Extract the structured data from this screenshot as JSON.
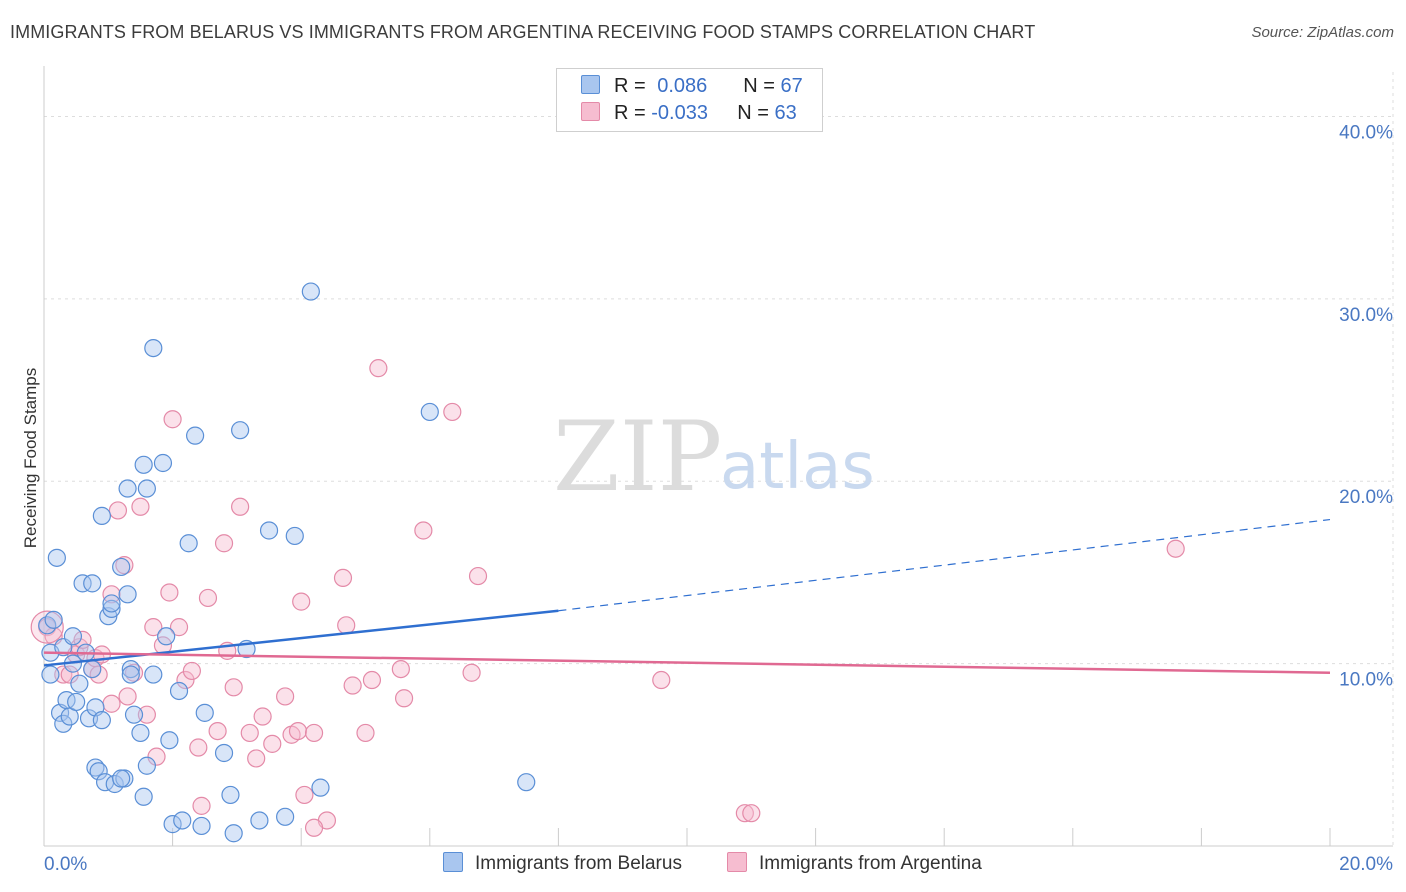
{
  "title": "IMMIGRANTS FROM BELARUS VS IMMIGRANTS FROM ARGENTINA RECEIVING FOOD STAMPS CORRELATION CHART",
  "source": "Source: ZipAtlas.com",
  "watermark": {
    "zip": "ZIP",
    "atlas": "atlas"
  },
  "colors": {
    "belarus_fill": "#a9c6ef",
    "belarus_stroke": "#5a8fd6",
    "belarus_line": "#2f6fd0",
    "argentina_fill": "#f6bdd0",
    "argentina_stroke": "#e48aa8",
    "argentina_line": "#e06992",
    "grid": "#dddddd",
    "tick_text": "#4a78c2"
  },
  "legend": {
    "belarus": {
      "r_label": "R = ",
      "r_value": "0.086",
      "n_label": "N = ",
      "n_value": "67"
    },
    "argentina": {
      "r_label": "R = ",
      "r_value": "-0.033",
      "n_label": "N = ",
      "n_value": "63"
    }
  },
  "bottom_legend": {
    "belarus": "Immigrants from Belarus",
    "argentina": "Immigrants from Argentina"
  },
  "chart_data": {
    "type": "scatter",
    "title": "IMMIGRANTS FROM BELARUS VS IMMIGRANTS FROM ARGENTINA RECEIVING FOOD STAMPS CORRELATION CHART",
    "xlabel": "",
    "ylabel": "Receiving Food Stamps",
    "xlim": [
      0,
      20
    ],
    "ylim": [
      0,
      42
    ],
    "x_tick_labels": [
      {
        "value": 0,
        "label": "0.0%"
      },
      {
        "value": 20,
        "label": "20.0%"
      }
    ],
    "y_tick_labels": [
      {
        "value": 10,
        "label": "10.0%"
      },
      {
        "value": 20,
        "label": "20.0%"
      },
      {
        "value": 30,
        "label": "30.0%"
      },
      {
        "value": 40,
        "label": "40.0%"
      }
    ],
    "grid": true,
    "legend_position": "top-center",
    "series": [
      {
        "name": "Immigrants from Belarus",
        "trend": {
          "x_start": 0,
          "y_start": 9.9,
          "x_solid_end": 8,
          "y_solid_end": 12.9,
          "x_end": 20,
          "y_end": 17.9
        },
        "points": [
          [
            0.05,
            12.1
          ],
          [
            0.1,
            10.6
          ],
          [
            0.1,
            9.4
          ],
          [
            0.2,
            15.8
          ],
          [
            0.25,
            7.3
          ],
          [
            0.3,
            10.9
          ],
          [
            0.3,
            6.7
          ],
          [
            0.35,
            8.0
          ],
          [
            0.4,
            7.1
          ],
          [
            0.45,
            11.5
          ],
          [
            0.45,
            10.0
          ],
          [
            0.5,
            7.9
          ],
          [
            0.55,
            8.9
          ],
          [
            0.6,
            14.4
          ],
          [
            0.65,
            10.6
          ],
          [
            0.7,
            7.0
          ],
          [
            0.75,
            9.7
          ],
          [
            0.75,
            14.4
          ],
          [
            0.8,
            7.6
          ],
          [
            0.8,
            4.3
          ],
          [
            0.85,
            4.1
          ],
          [
            0.9,
            18.1
          ],
          [
            0.9,
            6.9
          ],
          [
            0.95,
            3.5
          ],
          [
            1.0,
            12.6
          ],
          [
            1.05,
            13.0
          ],
          [
            1.05,
            13.3
          ],
          [
            1.1,
            3.4
          ],
          [
            1.2,
            15.3
          ],
          [
            1.25,
            3.7
          ],
          [
            1.3,
            13.8
          ],
          [
            1.3,
            19.6
          ],
          [
            1.35,
            9.7
          ],
          [
            1.35,
            9.4
          ],
          [
            1.4,
            7.2
          ],
          [
            1.5,
            6.2
          ],
          [
            1.55,
            2.7
          ],
          [
            1.55,
            20.9
          ],
          [
            1.6,
            4.4
          ],
          [
            1.6,
            19.6
          ],
          [
            1.7,
            9.4
          ],
          [
            1.85,
            21.0
          ],
          [
            1.9,
            11.5
          ],
          [
            1.95,
            5.8
          ],
          [
            2.0,
            1.2
          ],
          [
            2.1,
            8.5
          ],
          [
            2.15,
            1.4
          ],
          [
            2.25,
            16.6
          ],
          [
            2.35,
            22.5
          ],
          [
            2.45,
            1.1
          ],
          [
            2.5,
            7.3
          ],
          [
            2.8,
            5.1
          ],
          [
            2.9,
            2.8
          ],
          [
            2.95,
            0.7
          ],
          [
            3.05,
            22.8
          ],
          [
            3.15,
            10.8
          ],
          [
            3.35,
            1.4
          ],
          [
            3.5,
            17.3
          ],
          [
            3.75,
            1.6
          ],
          [
            3.9,
            17.0
          ],
          [
            4.15,
            30.4
          ],
          [
            4.3,
            3.2
          ],
          [
            6.0,
            23.8
          ],
          [
            7.5,
            3.5
          ],
          [
            1.7,
            27.3
          ],
          [
            0.15,
            12.4
          ],
          [
            1.2,
            3.7
          ]
        ]
      },
      {
        "name": "Immigrants from Argentina",
        "trend": {
          "x_start": 0,
          "y_start": 10.6,
          "x_end": 20,
          "y_end": 9.5
        },
        "points": [
          [
            0.05,
            12.0
          ],
          [
            0.15,
            11.5
          ],
          [
            0.3,
            9.4
          ],
          [
            0.4,
            9.4
          ],
          [
            0.5,
            10.5
          ],
          [
            0.55,
            10.9
          ],
          [
            0.6,
            11.3
          ],
          [
            0.75,
            9.7
          ],
          [
            0.8,
            10.3
          ],
          [
            0.85,
            9.4
          ],
          [
            0.9,
            10.5
          ],
          [
            1.05,
            13.8
          ],
          [
            1.05,
            7.8
          ],
          [
            1.15,
            18.4
          ],
          [
            1.25,
            15.4
          ],
          [
            1.3,
            8.2
          ],
          [
            1.4,
            9.5
          ],
          [
            1.5,
            18.6
          ],
          [
            1.6,
            7.2
          ],
          [
            1.7,
            12.0
          ],
          [
            1.75,
            4.9
          ],
          [
            1.85,
            11.0
          ],
          [
            1.95,
            13.9
          ],
          [
            2.0,
            23.4
          ],
          [
            2.1,
            12.0
          ],
          [
            2.2,
            9.1
          ],
          [
            2.3,
            9.6
          ],
          [
            2.4,
            5.4
          ],
          [
            2.45,
            2.2
          ],
          [
            2.55,
            13.6
          ],
          [
            2.7,
            6.3
          ],
          [
            2.8,
            16.6
          ],
          [
            2.85,
            10.7
          ],
          [
            2.95,
            8.7
          ],
          [
            3.05,
            18.6
          ],
          [
            3.2,
            6.2
          ],
          [
            3.3,
            4.8
          ],
          [
            3.4,
            7.1
          ],
          [
            3.55,
            5.6
          ],
          [
            3.75,
            8.2
          ],
          [
            3.85,
            6.1
          ],
          [
            3.95,
            6.3
          ],
          [
            4.0,
            13.4
          ],
          [
            4.05,
            2.8
          ],
          [
            4.2,
            6.2
          ],
          [
            4.4,
            1.4
          ],
          [
            4.65,
            14.7
          ],
          [
            4.7,
            12.1
          ],
          [
            4.8,
            8.8
          ],
          [
            5.0,
            6.2
          ],
          [
            5.1,
            9.1
          ],
          [
            5.2,
            26.2
          ],
          [
            5.55,
            9.7
          ],
          [
            5.6,
            8.1
          ],
          [
            5.9,
            17.3
          ],
          [
            6.35,
            23.8
          ],
          [
            6.65,
            9.5
          ],
          [
            6.75,
            14.8
          ],
          [
            9.6,
            9.1
          ],
          [
            10.9,
            1.8
          ],
          [
            11.0,
            1.8
          ],
          [
            17.6,
            16.3
          ],
          [
            4.2,
            1.0
          ]
        ]
      }
    ]
  }
}
